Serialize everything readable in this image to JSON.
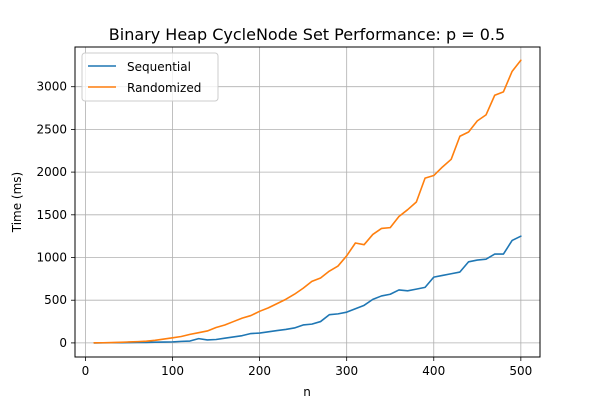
{
  "chart_data": {
    "type": "line",
    "title": "Binary Heap CycleNode Set Performance: p = 0.5",
    "xlabel": "n",
    "ylabel": "Time (ms)",
    "xlim": [
      -12,
      522
    ],
    "ylim": [
      -165,
      3465
    ],
    "xticks": [
      0,
      100,
      200,
      300,
      400,
      500
    ],
    "yticks": [
      0,
      500,
      1000,
      1500,
      2000,
      2500,
      3000
    ],
    "grid": true,
    "legend_position": "top-left",
    "x": [
      10,
      20,
      30,
      40,
      50,
      60,
      70,
      80,
      90,
      100,
      110,
      120,
      130,
      140,
      150,
      160,
      170,
      180,
      190,
      200,
      210,
      220,
      230,
      240,
      250,
      260,
      270,
      280,
      290,
      300,
      310,
      320,
      330,
      340,
      350,
      360,
      370,
      380,
      390,
      400,
      410,
      420,
      430,
      440,
      450,
      460,
      470,
      480,
      490,
      500
    ],
    "series": [
      {
        "name": "Sequential",
        "color": "#1f77b4",
        "values": [
          0,
          1,
          2,
          3,
          4,
          5,
          6,
          8,
          10,
          12,
          18,
          22,
          50,
          35,
          40,
          55,
          70,
          85,
          110,
          115,
          130,
          145,
          158,
          175,
          210,
          220,
          250,
          330,
          340,
          360,
          400,
          440,
          510,
          550,
          570,
          620,
          610,
          630,
          650,
          770,
          790,
          810,
          830,
          950,
          970,
          980,
          1040,
          1040,
          1200,
          1250
        ]
      },
      {
        "name": "Randomized",
        "color": "#ff7f0e",
        "values": [
          1,
          2,
          4,
          7,
          11,
          15,
          20,
          30,
          45,
          60,
          75,
          100,
          120,
          140,
          180,
          210,
          250,
          290,
          320,
          370,
          410,
          460,
          510,
          570,
          640,
          720,
          760,
          840,
          900,
          1020,
          1170,
          1150,
          1270,
          1340,
          1350,
          1480,
          1560,
          1650,
          1930,
          1960,
          2060,
          2150,
          2420,
          2470,
          2600,
          2670,
          2900,
          2940,
          3180,
          3310
        ]
      }
    ]
  }
}
